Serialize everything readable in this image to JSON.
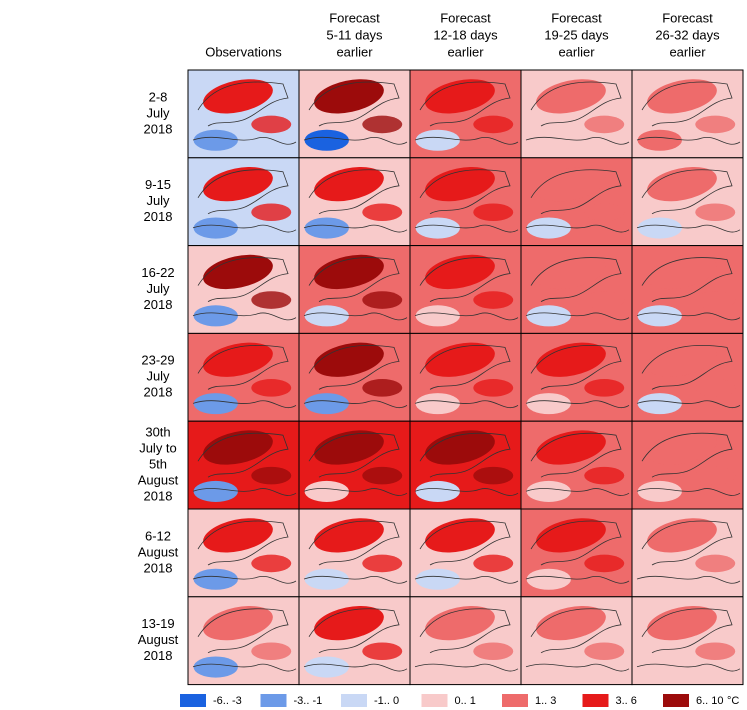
{
  "columns": [
    {
      "lines": [
        "Observations"
      ]
    },
    {
      "lines": [
        "Forecast",
        "5-11 days",
        "earlier"
      ]
    },
    {
      "lines": [
        "Forecast",
        "12-18 days",
        "earlier"
      ]
    },
    {
      "lines": [
        "Forecast",
        "19-25 days",
        "earlier"
      ]
    },
    {
      "lines": [
        "Forecast",
        "26-32 days",
        "earlier"
      ]
    }
  ],
  "rows": [
    {
      "lines": [
        "2-8",
        "July",
        "2018"
      ]
    },
    {
      "lines": [
        "9-15",
        "July",
        "2018"
      ]
    },
    {
      "lines": [
        "16-22",
        "July",
        "2018"
      ]
    },
    {
      "lines": [
        "23-29",
        "July",
        "2018"
      ]
    },
    {
      "lines": [
        "30th",
        "July to",
        "5th",
        "August",
        "2018"
      ]
    },
    {
      "lines": [
        "6-12",
        "August",
        "2018"
      ]
    },
    {
      "lines": [
        "13-19",
        "August",
        "2018"
      ]
    }
  ],
  "legend": {
    "unit": "°C",
    "items": [
      {
        "label": "-6.. -3",
        "color": "#1a62e0"
      },
      {
        "label": "-3.. -1",
        "color": "#6c9ae8"
      },
      {
        "label": "-1.. 0",
        "color": "#c9d8f5"
      },
      {
        "label": "0.. 1",
        "color": "#f8caca"
      },
      {
        "label": "1.. 3",
        "color": "#ee6b6b"
      },
      {
        "label": "3.. 6",
        "color": "#e61a1a"
      },
      {
        "label": "6.. 10",
        "color": "#9c0b0b"
      }
    ]
  }
}
